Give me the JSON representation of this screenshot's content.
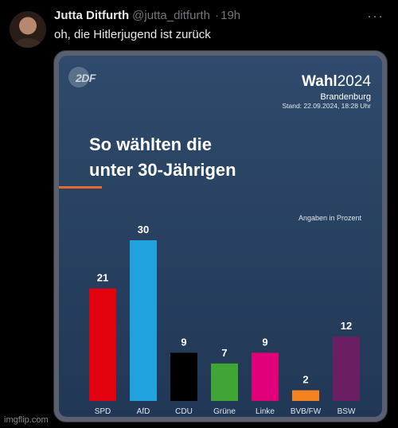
{
  "tweet": {
    "name": "Jutta Ditfurth",
    "handle": "@jutta_ditfurth",
    "separator": "·",
    "time": "19h",
    "more": "···",
    "text": "oh, die Hitlerjugend ist zurück"
  },
  "graphic": {
    "logo": "2DF",
    "wahl_word": "Wahl",
    "wahl_year": "2024",
    "region": "Brandenburg",
    "stand": "Stand: 22.09.2024, 18:28 Uhr",
    "title_line1": "So wählten die",
    "title_line2": "unter 30-Jährigen",
    "unit_note": "Angaben in Prozent",
    "accent_color": "#e8692f"
  },
  "chart_data": {
    "type": "bar",
    "categories": [
      "SPD",
      "AfD",
      "CDU",
      "Grüne",
      "Linke",
      "BVB/FW",
      "BSW"
    ],
    "values": [
      21,
      30,
      9,
      7,
      9,
      2,
      12
    ],
    "colors": [
      "#e3000f",
      "#1fa2de",
      "#000000",
      "#3fa535",
      "#e2007a",
      "#f58220",
      "#6b1f62"
    ],
    "ylim": [
      0,
      30
    ]
  },
  "watermark": "imgflip.com"
}
